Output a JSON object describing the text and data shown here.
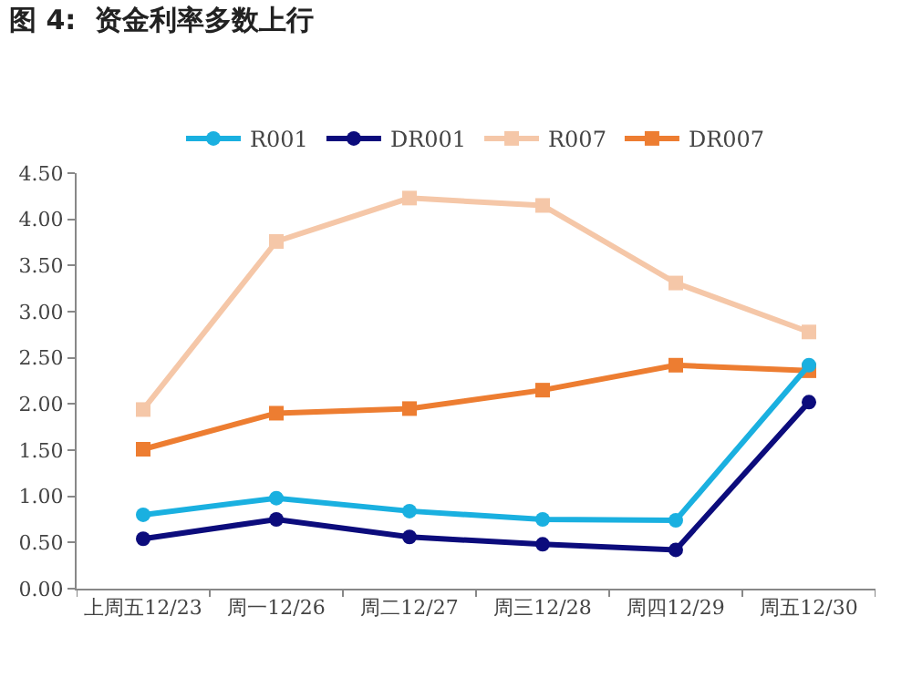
{
  "chart_data": {
    "type": "line",
    "title": "图 4:  资金利率多数上行",
    "categories": [
      "上周五12/23",
      "周一12/26",
      "周二12/27",
      "周三12/28",
      "周四12/29",
      "周五12/30"
    ],
    "series": [
      {
        "name": "R001",
        "color": "#1ab0e0",
        "marker": "circle",
        "values": [
          0.8,
          0.98,
          0.84,
          0.75,
          0.74,
          2.42
        ]
      },
      {
        "name": "DR001",
        "color": "#0c0c7c",
        "marker": "circle",
        "values": [
          0.54,
          0.75,
          0.56,
          0.48,
          0.42,
          2.02
        ]
      },
      {
        "name": "R007",
        "color": "#f5c7a8",
        "marker": "square",
        "values": [
          1.94,
          3.76,
          4.23,
          4.15,
          3.31,
          2.78
        ]
      },
      {
        "name": "DR007",
        "color": "#ed7d31",
        "marker": "square",
        "values": [
          1.51,
          1.9,
          1.95,
          2.15,
          2.42,
          2.36
        ]
      }
    ],
    "ylim": [
      0,
      4.5
    ],
    "yticks": [
      {
        "value": 0,
        "label": "0.00"
      },
      {
        "value": 0.5,
        "label": "0.50"
      },
      {
        "value": 1,
        "label": "1.00"
      },
      {
        "value": 1.5,
        "label": "1.50"
      },
      {
        "value": 2,
        "label": "2.00"
      },
      {
        "value": 2.5,
        "label": "2.50"
      },
      {
        "value": 3,
        "label": "3.00"
      },
      {
        "value": 3.5,
        "label": "3.50"
      },
      {
        "value": 4,
        "label": "4.00"
      },
      {
        "value": 4.5,
        "label": "4.50"
      }
    ],
    "grid": false,
    "legend": "top",
    "line_style": "solid"
  }
}
